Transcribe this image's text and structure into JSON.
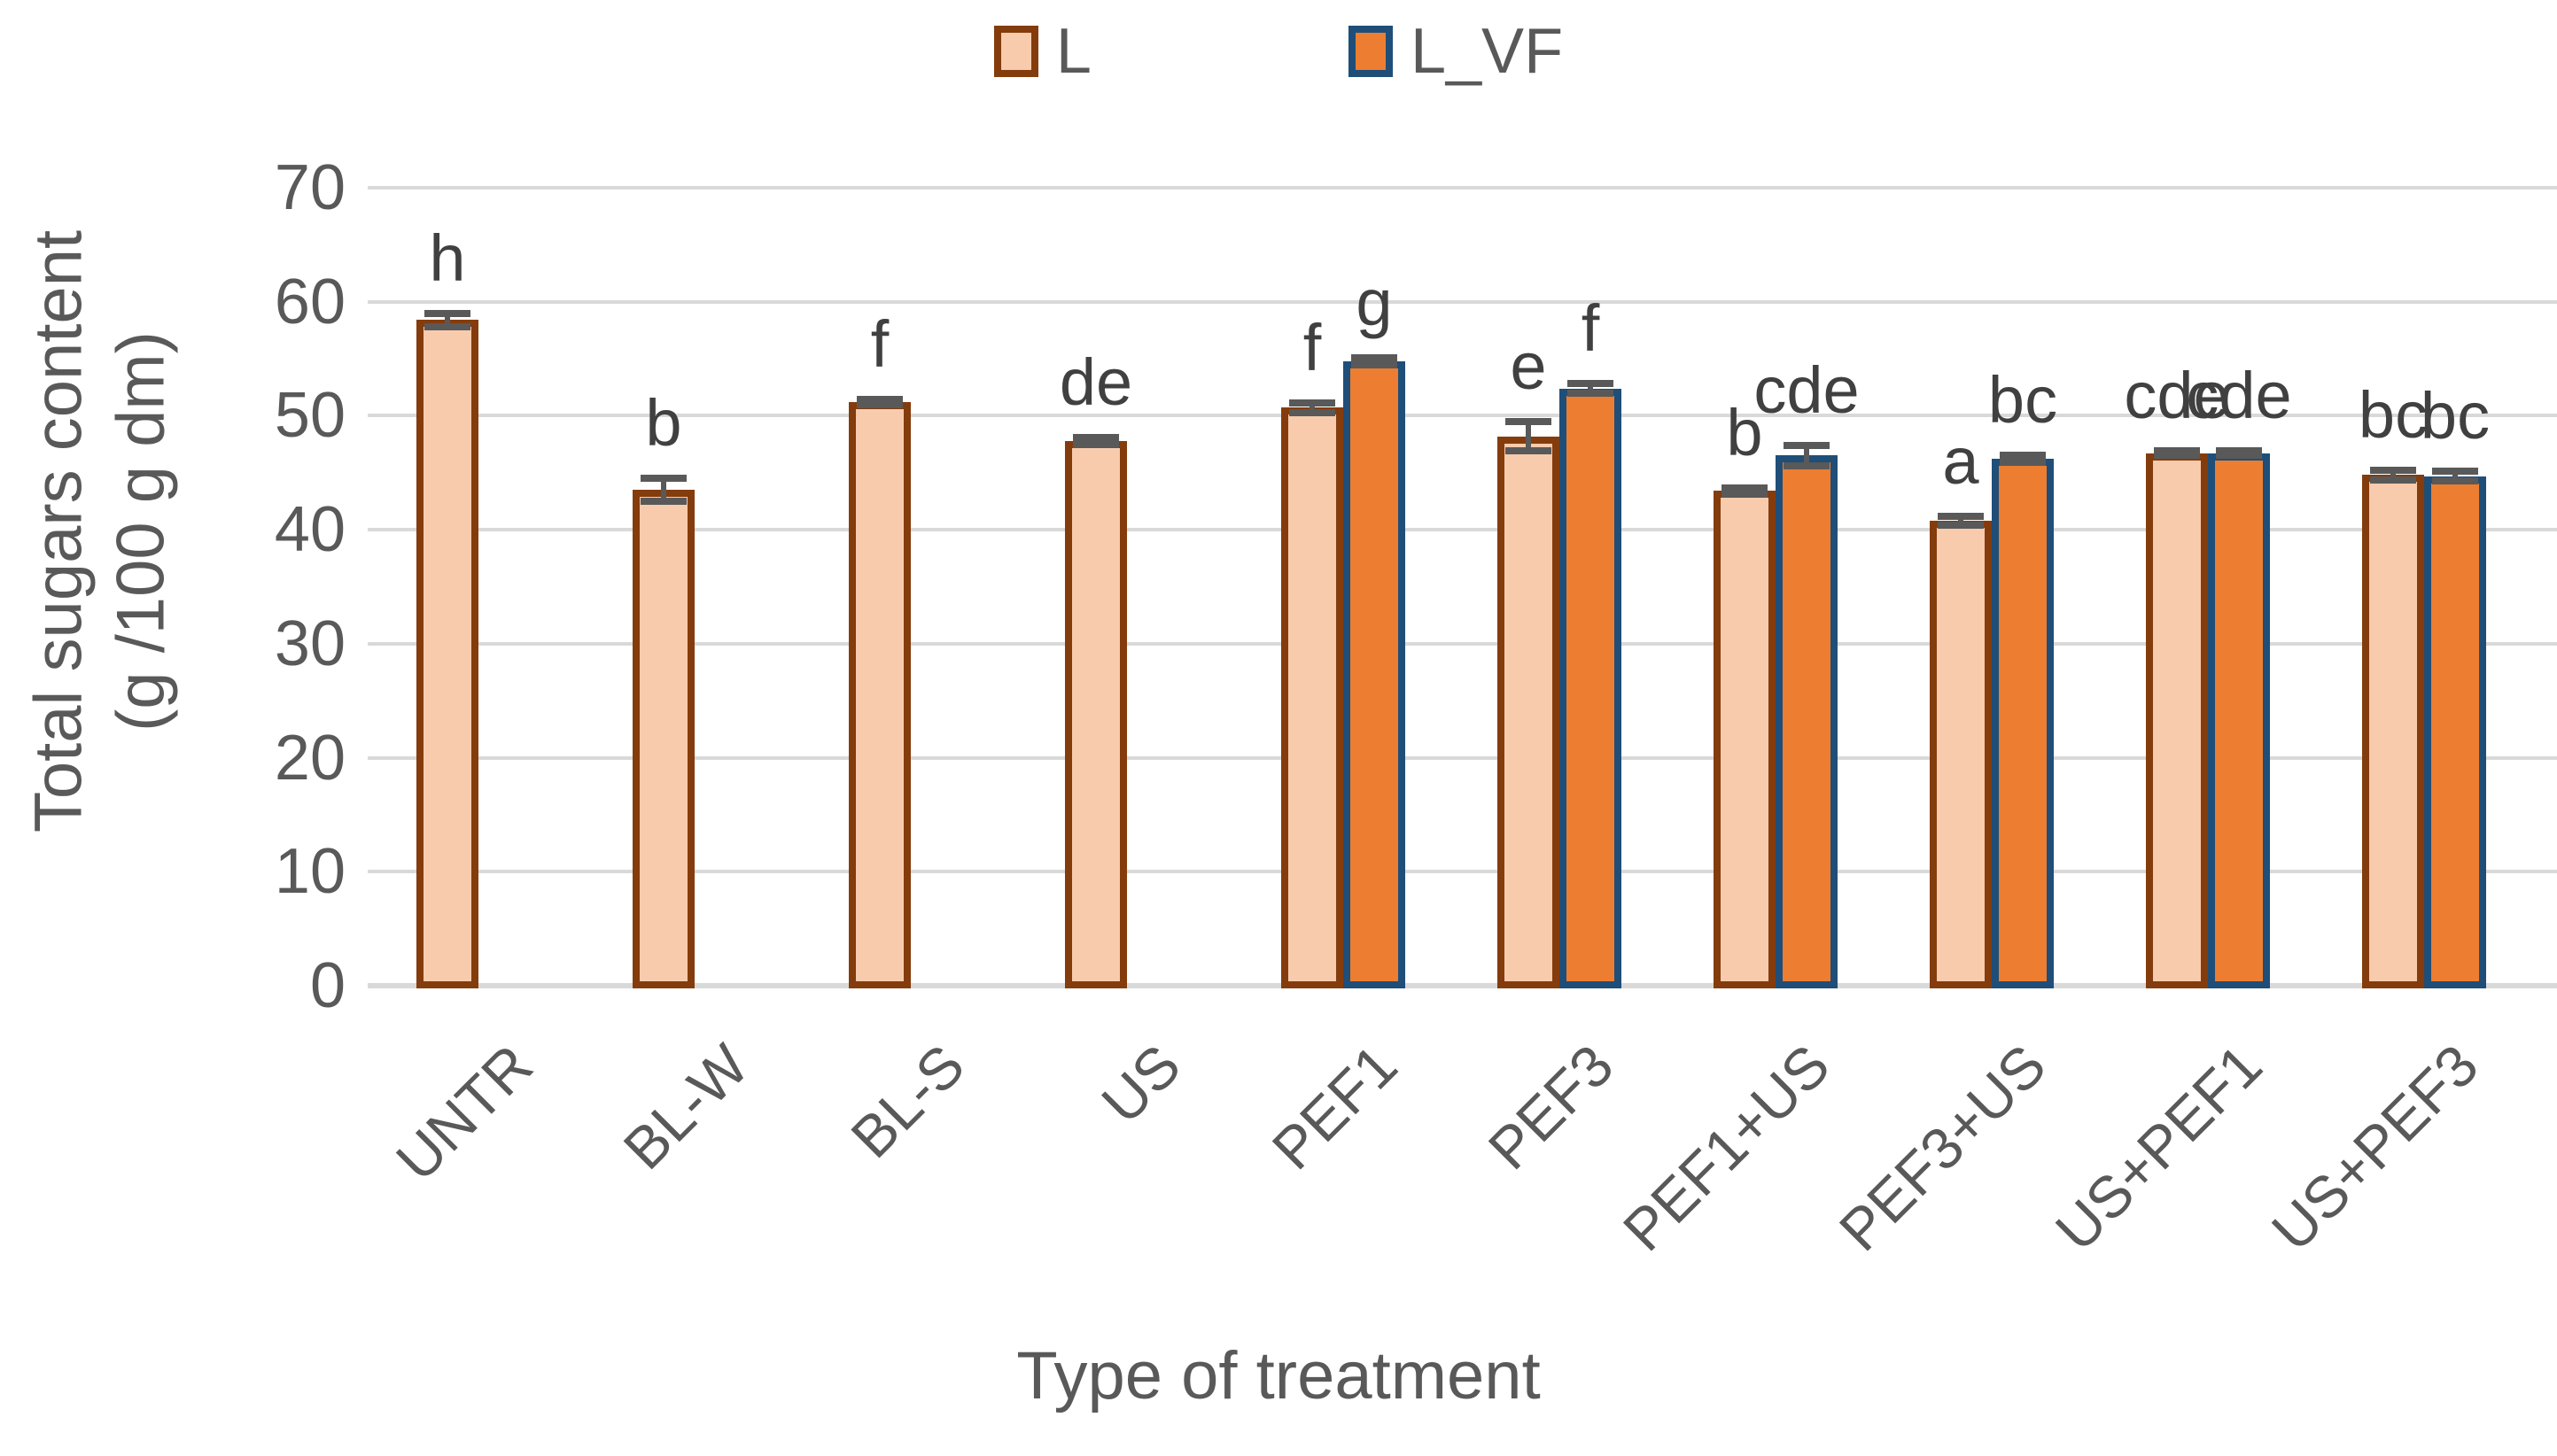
{
  "legend": {
    "items": [
      {
        "label": "L"
      },
      {
        "label": "L_VF"
      }
    ]
  },
  "chart_data": {
    "type": "bar",
    "title": "",
    "xlabel": "Type of treatment",
    "ylabel": "Total sugars content (g /100 g dm)",
    "ylabel_lines": [
      "Total sugars content",
      "(g /100 g dm)"
    ],
    "ylim": [
      0,
      70
    ],
    "yticks": [
      0,
      10,
      20,
      30,
      40,
      50,
      60,
      70
    ],
    "grid": true,
    "legend_position": "top",
    "categories": [
      "UNTR",
      "BL-W",
      "BL-S",
      "US",
      "PEF1",
      "PEF3",
      "PEF1+US",
      "PEF3+US",
      "US+PEF1",
      "US+PEF3"
    ],
    "series": [
      {
        "name": "L",
        "fill": "#F8CBAD",
        "border": "#843C0C",
        "values": [
          58.4,
          43.5,
          51.2,
          47.8,
          50.7,
          48.2,
          43.4,
          40.8,
          46.7,
          44.8
        ],
        "errors": [
          0.6,
          1.0,
          0.25,
          0.3,
          0.4,
          1.3,
          0.3,
          0.4,
          0.2,
          0.4
        ],
        "letters": [
          "h",
          "b",
          "f",
          "de",
          "f",
          "e",
          "b",
          "a",
          "cde",
          "bc"
        ]
      },
      {
        "name": "L_VF",
        "fill": "#ED7D31",
        "border": "#1F4E79",
        "values": [
          null,
          null,
          null,
          null,
          54.8,
          52.4,
          46.5,
          46.2,
          46.7,
          44.7
        ],
        "errors": [
          null,
          null,
          null,
          null,
          0.3,
          0.4,
          0.9,
          0.3,
          0.2,
          0.4
        ],
        "letters": [
          null,
          null,
          null,
          null,
          "g",
          "f",
          "cde",
          "bc",
          "cde",
          "bc"
        ]
      }
    ]
  },
  "colors": {
    "background": "#FFFFFF",
    "gridline": "#D9D9D9",
    "axis_line": "#D9D9D9",
    "axis_text": "#595959",
    "letter_text": "#404040",
    "error_bar": "#595959",
    "series_l_fill": "#F8CBAD",
    "series_l_border": "#843C0C",
    "series_lvf_fill": "#ED7D31",
    "series_lvf_border": "#1F4E79"
  }
}
